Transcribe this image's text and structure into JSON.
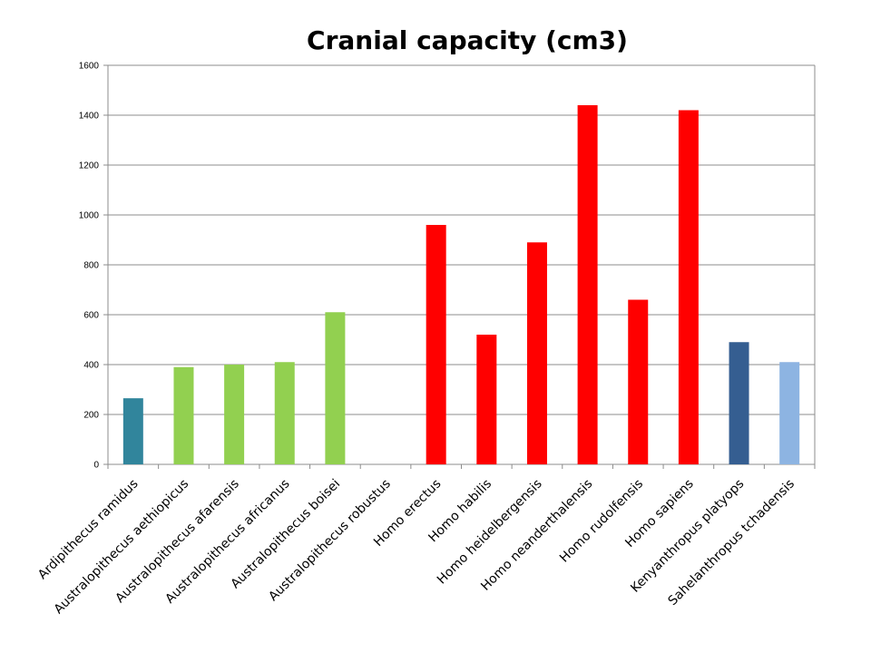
{
  "chart_data": {
    "type": "bar",
    "title": "Cranial capacity (cm3)",
    "xlabel": "",
    "ylabel": "",
    "ylim": [
      0,
      1600
    ],
    "yticks": [
      0,
      200,
      400,
      600,
      800,
      1000,
      1200,
      1400,
      1600
    ],
    "grid": true,
    "categories": [
      "Ardipithecus ramidus",
      "Australopithecus aethiopicus",
      "Australopithecus afarensis",
      "Australopithecus africanus",
      "Australopithecus boisei",
      "Australopithecus robustus",
      "Homo erectus",
      "Homo habilis",
      "Homo heidelbergensis",
      "Homo neanderthalensis",
      "Homo rudolfensis",
      "Homo sapiens",
      "Kenyanthropus platyops",
      "Sahelanthropus tchadensis"
    ],
    "values": [
      265,
      390,
      400,
      410,
      610,
      0,
      960,
      520,
      890,
      1440,
      660,
      1420,
      490,
      410
    ],
    "colors": [
      "#31859C",
      "#92D050",
      "#92D050",
      "#92D050",
      "#92D050",
      "#92D050",
      "#FF0000",
      "#FF0000",
      "#FF0000",
      "#FF0000",
      "#FF0000",
      "#FF0000",
      "#355E91",
      "#8DB4E2"
    ]
  }
}
